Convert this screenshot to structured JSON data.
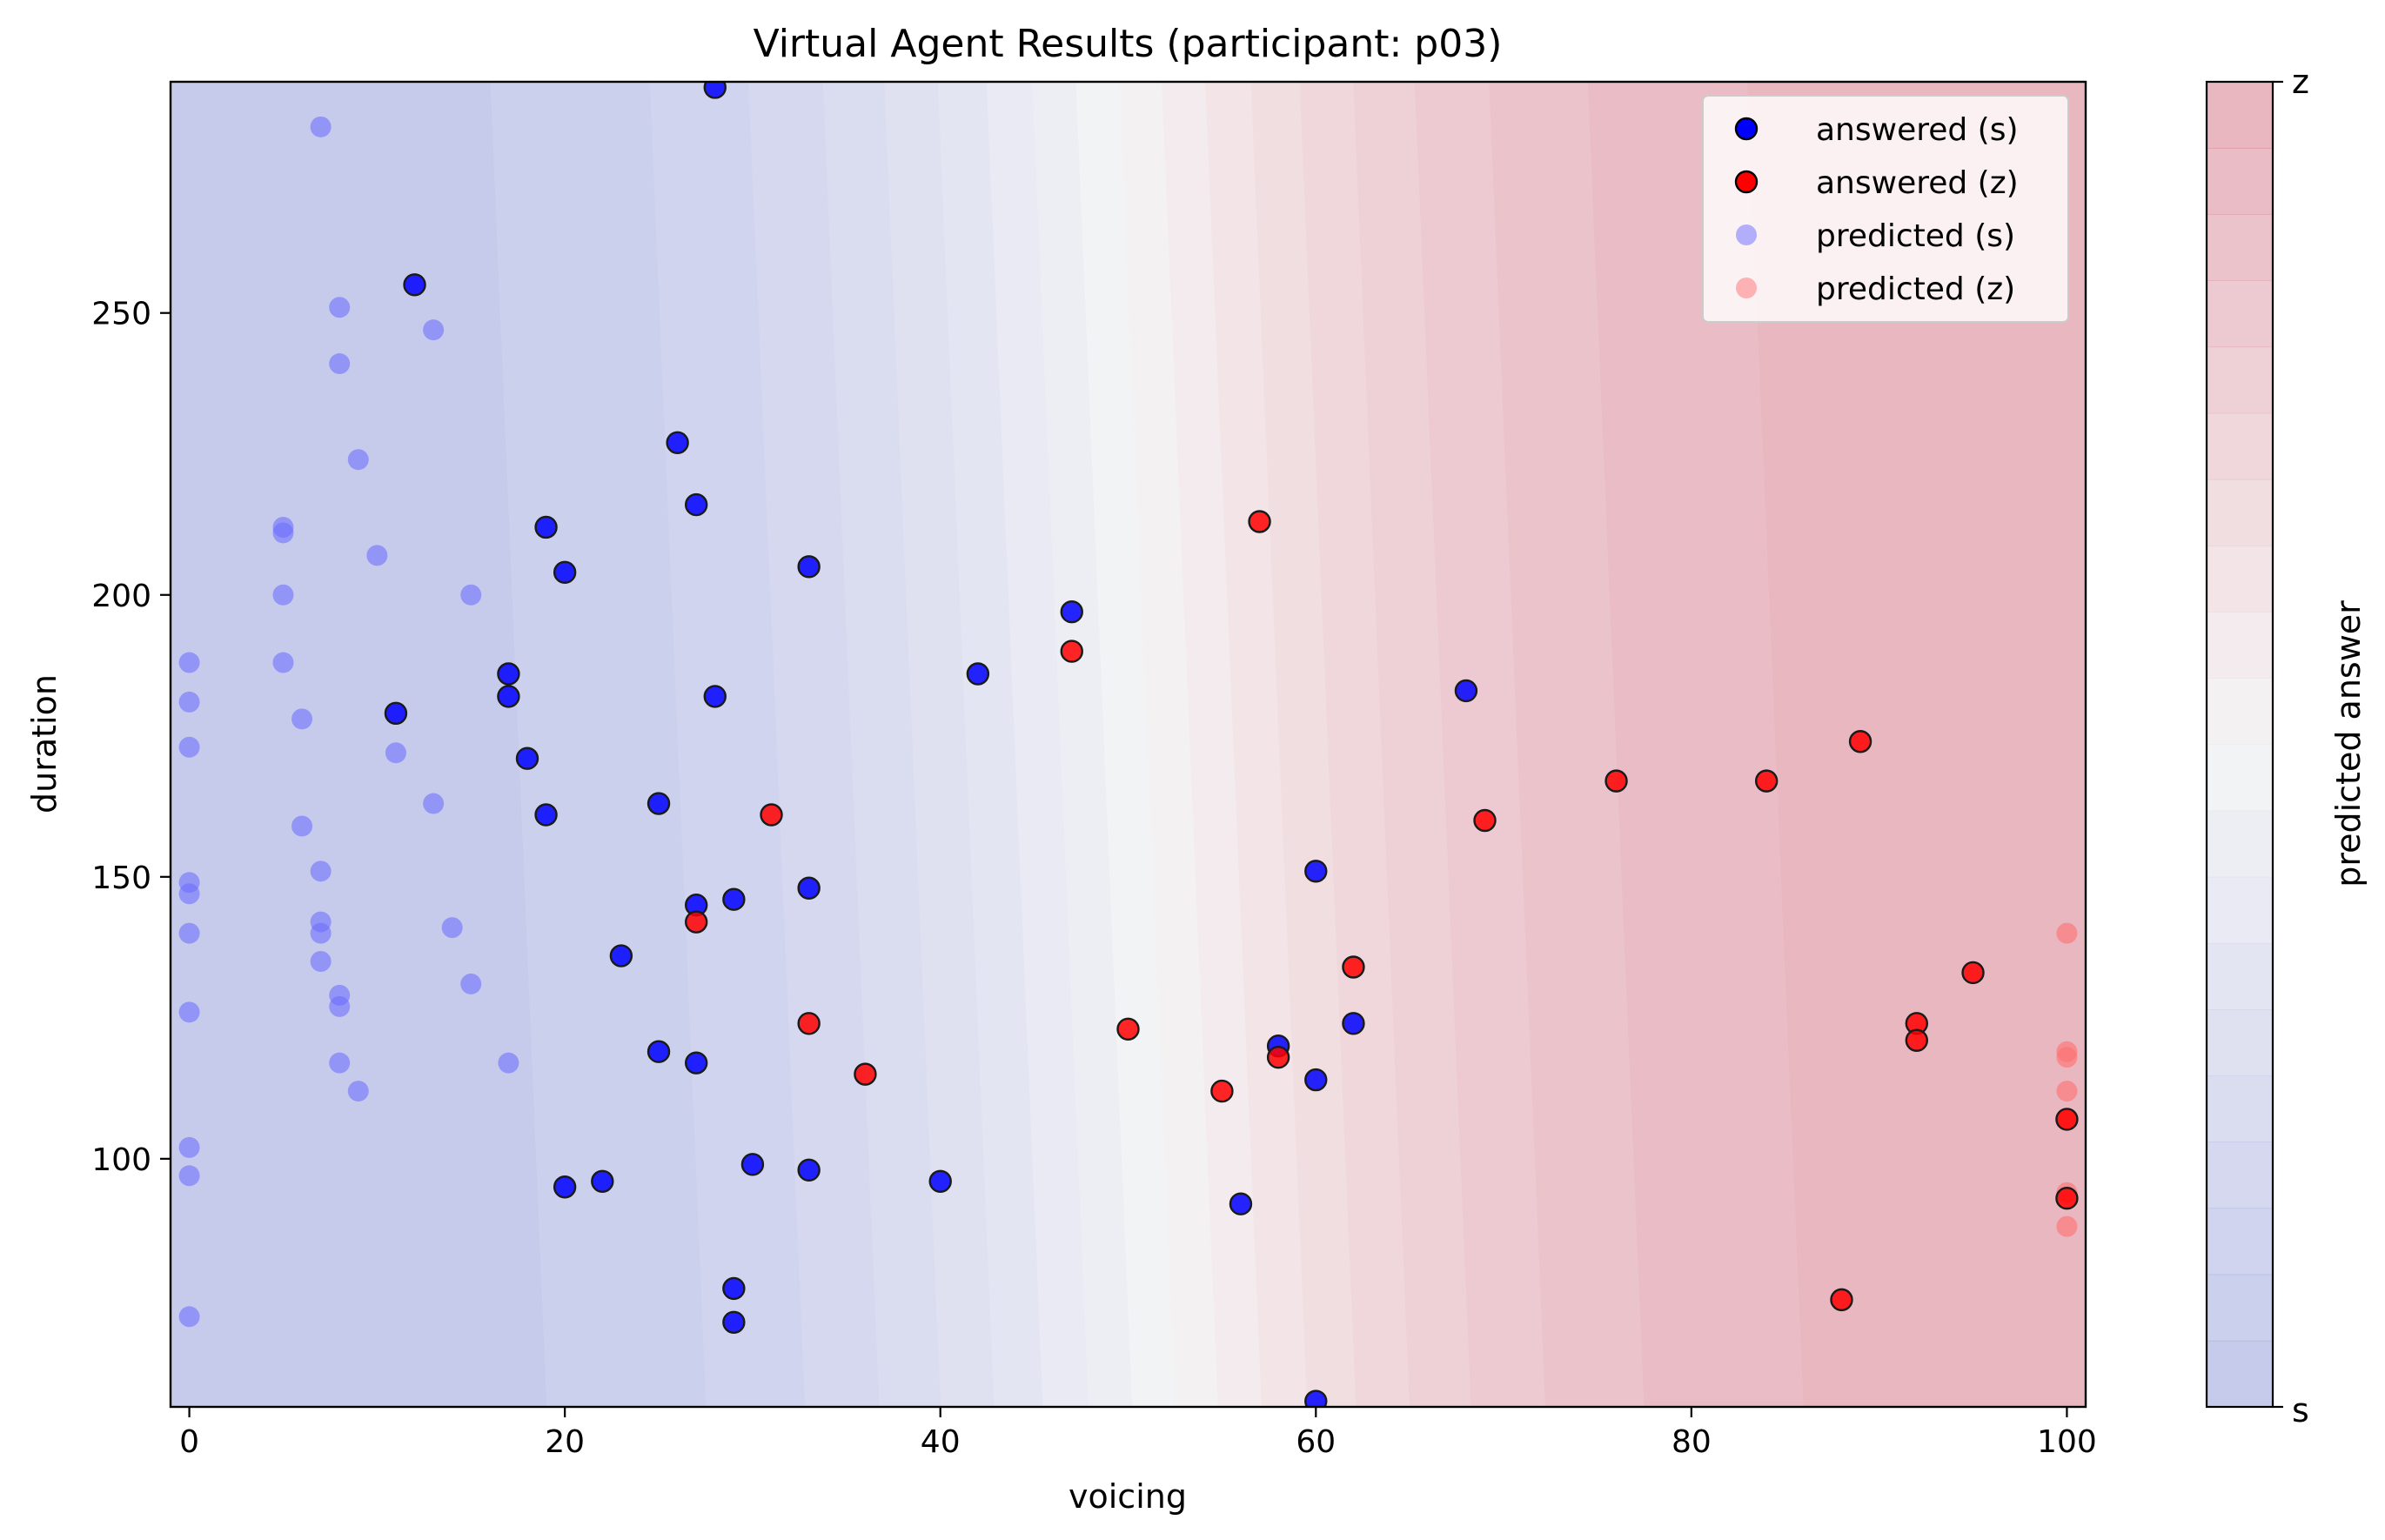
{
  "chart_data": {
    "type": "scatter",
    "title": "Virtual Agent Results (participant: p03)",
    "xlabel": "voicing",
    "ylabel": "duration",
    "xlim": [
      -1,
      101
    ],
    "ylim": [
      56,
      291
    ],
    "xticks": [
      0,
      20,
      40,
      60,
      80,
      100
    ],
    "yticks": [
      100,
      150,
      200,
      250
    ],
    "grid": false,
    "legend_position": "top-right",
    "colorbar": {
      "label": "predicted answer",
      "min_label": "s",
      "max_label": "z",
      "colormap": "coolwarm",
      "levels": 20
    },
    "background": {
      "description_free": true,
      "boundary_x_at_duration_56": 52.5,
      "boundary_x_at_duration_291": 49.5
    },
    "colors": {
      "answered_s": "#0000ff",
      "answered_z": "#ff0000",
      "predicted_s": "#6a6aff",
      "predicted_z": "#ff7070",
      "cmap_low": "#3b4cc0",
      "cmap_mid": "#dddddd",
      "cmap_high": "#b40426"
    },
    "series": [
      {
        "name": "answered (s)",
        "points": [
          [
            28,
            290
          ],
          [
            12,
            255
          ],
          [
            26,
            227
          ],
          [
            27,
            216
          ],
          [
            19,
            212
          ],
          [
            20,
            204
          ],
          [
            33,
            205
          ],
          [
            47,
            197
          ],
          [
            42,
            186
          ],
          [
            17,
            186
          ],
          [
            17,
            182
          ],
          [
            28,
            182
          ],
          [
            11,
            179
          ],
          [
            68,
            183
          ],
          [
            18,
            171
          ],
          [
            19,
            161
          ],
          [
            25,
            163
          ],
          [
            60,
            151
          ],
          [
            33,
            148
          ],
          [
            29,
            146
          ],
          [
            27,
            145
          ],
          [
            23,
            136
          ],
          [
            62,
            124
          ],
          [
            58,
            120
          ],
          [
            25,
            119
          ],
          [
            27,
            117
          ],
          [
            60,
            114
          ],
          [
            20,
            95
          ],
          [
            22,
            96
          ],
          [
            30,
            99
          ],
          [
            33,
            98
          ],
          [
            40,
            96
          ],
          [
            56,
            92
          ],
          [
            29,
            77
          ],
          [
            29,
            71
          ],
          [
            60,
            57
          ]
        ]
      },
      {
        "name": "answered (z)",
        "points": [
          [
            57,
            213
          ],
          [
            47,
            190
          ],
          [
            89,
            174
          ],
          [
            76,
            167
          ],
          [
            84,
            167
          ],
          [
            69,
            160
          ],
          [
            31,
            161
          ],
          [
            27,
            142
          ],
          [
            62,
            134
          ],
          [
            95,
            133
          ],
          [
            92,
            124
          ],
          [
            92,
            121
          ],
          [
            33,
            124
          ],
          [
            50,
            123
          ],
          [
            58,
            118
          ],
          [
            36,
            115
          ],
          [
            55,
            112
          ],
          [
            100,
            107
          ],
          [
            100,
            93
          ],
          [
            88,
            75
          ]
        ]
      },
      {
        "name": "predicted (s)",
        "points": [
          [
            7,
            283
          ],
          [
            8,
            251
          ],
          [
            13,
            247
          ],
          [
            8,
            241
          ],
          [
            9,
            224
          ],
          [
            5,
            212
          ],
          [
            5,
            211
          ],
          [
            10,
            207
          ],
          [
            5,
            200
          ],
          [
            15,
            200
          ],
          [
            0,
            188
          ],
          [
            5,
            188
          ],
          [
            0,
            181
          ],
          [
            6,
            178
          ],
          [
            0,
            173
          ],
          [
            11,
            172
          ],
          [
            13,
            163
          ],
          [
            6,
            159
          ],
          [
            7,
            151
          ],
          [
            0,
            149
          ],
          [
            0,
            147
          ],
          [
            7,
            142
          ],
          [
            14,
            141
          ],
          [
            0,
            140
          ],
          [
            7,
            140
          ],
          [
            7,
            135
          ],
          [
            15,
            131
          ],
          [
            8,
            129
          ],
          [
            8,
            127
          ],
          [
            0,
            126
          ],
          [
            8,
            117
          ],
          [
            17,
            117
          ],
          [
            9,
            112
          ],
          [
            0,
            102
          ],
          [
            0,
            97
          ],
          [
            0,
            72
          ]
        ]
      },
      {
        "name": "predicted (z)",
        "points": [
          [
            100,
            140
          ],
          [
            100,
            119
          ],
          [
            100,
            118
          ],
          [
            100,
            112
          ],
          [
            100,
            107
          ],
          [
            100,
            94
          ],
          [
            100,
            88
          ]
        ]
      }
    ]
  }
}
